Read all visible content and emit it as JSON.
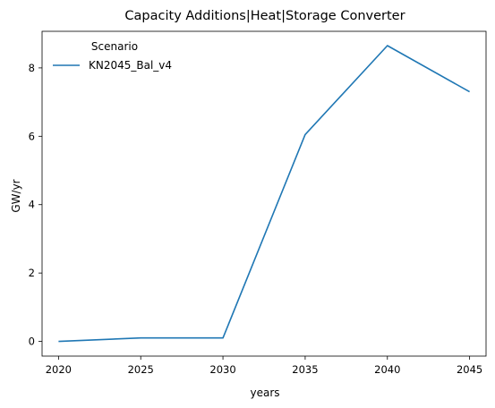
{
  "chart_data": {
    "type": "line",
    "title": "Capacity Additions|Heat|Storage Converter",
    "xlabel": "years",
    "ylabel": "GW/yr",
    "x": [
      2020,
      2025,
      2030,
      2035,
      2040,
      2045
    ],
    "xticks": [
      "2020",
      "2025",
      "2030",
      "2035",
      "2040",
      "2045"
    ],
    "yticks": [
      "0",
      "2",
      "4",
      "6",
      "8"
    ],
    "xlim": [
      2019,
      2046
    ],
    "ylim": [
      -0.43,
      9.07
    ],
    "grid": false,
    "legend": {
      "title": "Scenario",
      "placement": "top-left"
    },
    "series": [
      {
        "name": "KN2045_Bal_v4",
        "color": "#1f77b4",
        "values": [
          0.0,
          0.1,
          0.1,
          6.05,
          8.65,
          7.3
        ]
      }
    ]
  }
}
